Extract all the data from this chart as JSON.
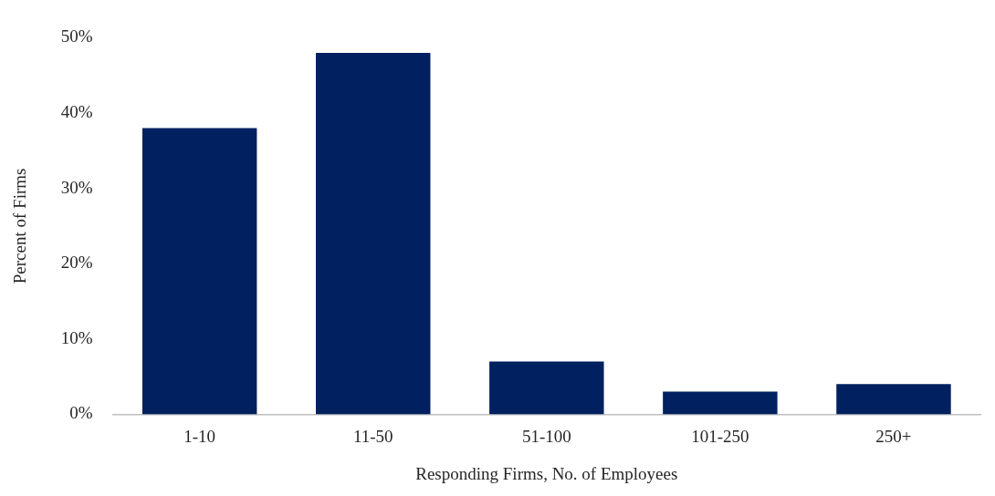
{
  "chart_data": {
    "type": "bar",
    "xlabel": "Responding Firms, No. of Employees",
    "ylabel": "Percent of Firms",
    "categories": [
      "1-10",
      "11-50",
      "51-100",
      "101-250",
      "250+"
    ],
    "values": [
      38,
      48,
      7,
      3,
      4
    ],
    "color": "#002060",
    "ylim": [
      0,
      50
    ],
    "yticks": [
      {
        "value": 0,
        "label": "0%"
      },
      {
        "value": 10,
        "label": "10%"
      },
      {
        "value": 20,
        "label": "20%"
      },
      {
        "value": 30,
        "label": "30%"
      },
      {
        "value": 40,
        "label": "40%"
      },
      {
        "value": 50,
        "label": "50%"
      }
    ],
    "grid": false,
    "legend": false
  }
}
